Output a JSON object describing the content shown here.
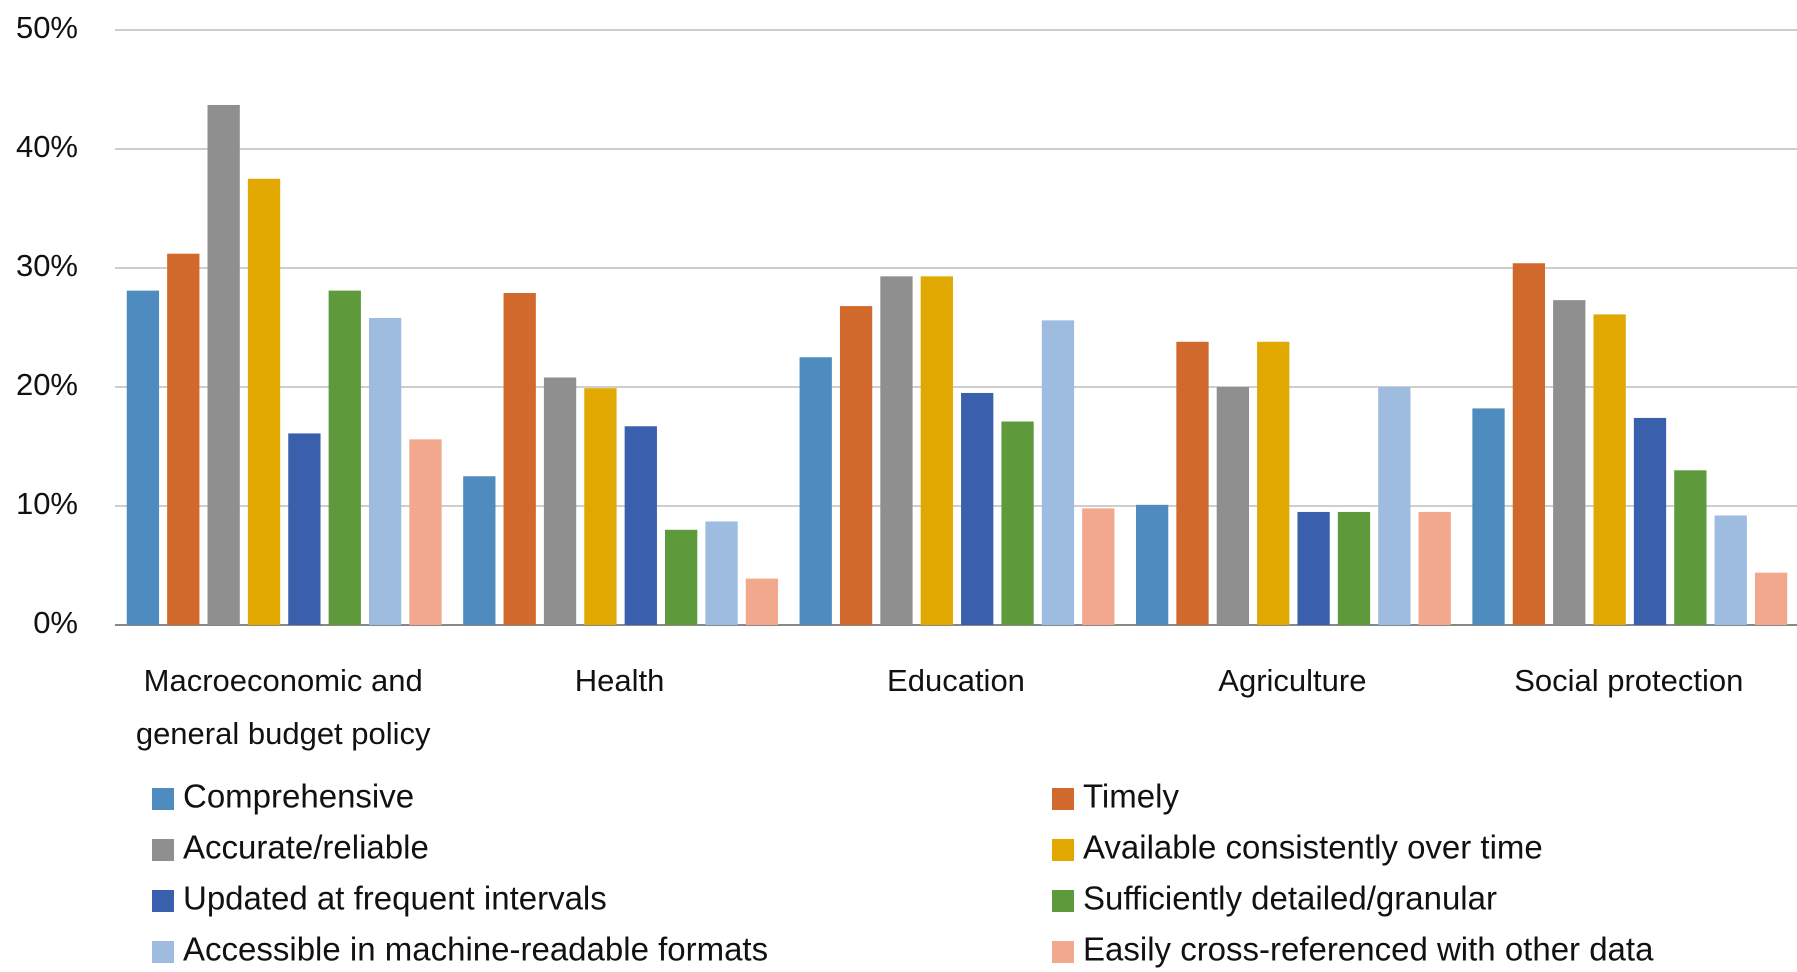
{
  "chart_data": {
    "type": "bar",
    "categories": [
      "Macroeconomic and general budget policy",
      "Health",
      "Education",
      "Agriculture",
      "Social protection"
    ],
    "series": [
      {
        "name": "Comprehensive",
        "color": "#4e8bbf",
        "values": [
          28.1,
          12.5,
          22.5,
          10.1,
          18.2
        ]
      },
      {
        "name": "Timely",
        "color": "#d2692c",
        "values": [
          31.2,
          27.9,
          26.8,
          23.8,
          30.4
        ]
      },
      {
        "name": "Accurate/reliable",
        "color": "#8f8f8f",
        "values": [
          43.7,
          20.8,
          29.3,
          20.0,
          27.3
        ]
      },
      {
        "name": "Available consistently over time",
        "color": "#e0a800",
        "values": [
          37.5,
          19.9,
          29.3,
          23.8,
          26.1
        ]
      },
      {
        "name": "Updated at frequent intervals",
        "color": "#3a5fad",
        "values": [
          16.1,
          16.7,
          19.5,
          9.5,
          17.4
        ]
      },
      {
        "name": "Sufficiently detailed/granular",
        "color": "#5e9a3c",
        "values": [
          28.1,
          8.0,
          17.1,
          9.5,
          13.0
        ]
      },
      {
        "name": "Accessible in machine-readable formats",
        "color": "#9dbce0",
        "values": [
          25.8,
          8.7,
          25.6,
          20.0,
          9.2
        ]
      },
      {
        "name": "Easily cross-referenced with other data",
        "color": "#f2a88c",
        "values": [
          15.6,
          3.9,
          9.8,
          9.5,
          4.4
        ]
      }
    ],
    "ylim": [
      0,
      50
    ],
    "yticks": [
      {
        "value": 0,
        "label": "0%"
      },
      {
        "value": 10,
        "label": "10%"
      },
      {
        "value": 20,
        "label": "20%"
      },
      {
        "value": 30,
        "label": "30%"
      },
      {
        "value": 40,
        "label": "40%"
      },
      {
        "value": 50,
        "label": "50%"
      }
    ],
    "grid": true,
    "legend": "bottom"
  }
}
